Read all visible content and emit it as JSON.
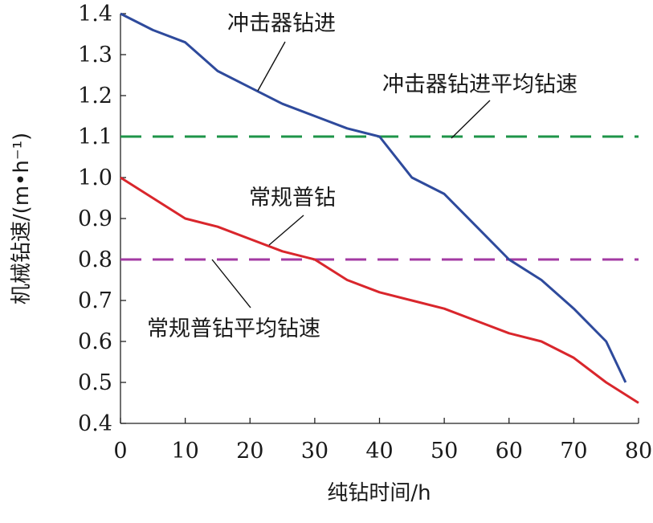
{
  "chart_data": {
    "type": "line",
    "xlabel": "纯钻时间/h",
    "ylabel": "机械钻速/(m•h⁻¹)",
    "xlim": [
      0,
      80
    ],
    "ylim": [
      0.4,
      1.4
    ],
    "xticks": [
      0,
      10,
      20,
      30,
      40,
      50,
      60,
      70,
      80
    ],
    "yticks": [
      0.4,
      0.5,
      0.6,
      0.7,
      0.8,
      0.9,
      1.0,
      1.1,
      1.2,
      1.3,
      1.4
    ],
    "ytick_labels": [
      "0.4",
      "0.5",
      "0.6",
      "0.7",
      "0.8",
      "0.9",
      "1.0",
      "1.1",
      "1.2",
      "1.3",
      "1.4"
    ],
    "grid": false,
    "series": [
      {
        "name": "冲击器钻进",
        "color": "#2e4a9c",
        "style": "solid",
        "x": [
          0,
          5,
          10,
          15,
          20,
          25,
          30,
          35,
          40,
          45,
          50,
          55,
          60,
          65,
          70,
          75,
          78
        ],
        "y": [
          1.4,
          1.36,
          1.33,
          1.26,
          1.22,
          1.18,
          1.15,
          1.12,
          1.1,
          1.0,
          0.96,
          0.88,
          0.8,
          0.75,
          0.68,
          0.6,
          0.5
        ]
      },
      {
        "name": "常规普钻",
        "color": "#d9262c",
        "style": "solid",
        "x": [
          0,
          5,
          10,
          15,
          20,
          25,
          30,
          35,
          40,
          45,
          50,
          55,
          60,
          65,
          70,
          75,
          80
        ],
        "y": [
          1.0,
          0.95,
          0.9,
          0.88,
          0.85,
          0.82,
          0.8,
          0.75,
          0.72,
          0.7,
          0.68,
          0.65,
          0.62,
          0.6,
          0.56,
          0.5,
          0.45
        ]
      },
      {
        "name": "冲击器钻进平均钻速",
        "color": "#1e9448",
        "style": "dashed",
        "x": [
          0,
          80
        ],
        "y": [
          1.1,
          1.1
        ]
      },
      {
        "name": "常规普钻平均钻速",
        "color": "#a33aa3",
        "style": "dashed",
        "x": [
          0,
          80
        ],
        "y": [
          0.8,
          0.8
        ]
      }
    ]
  }
}
